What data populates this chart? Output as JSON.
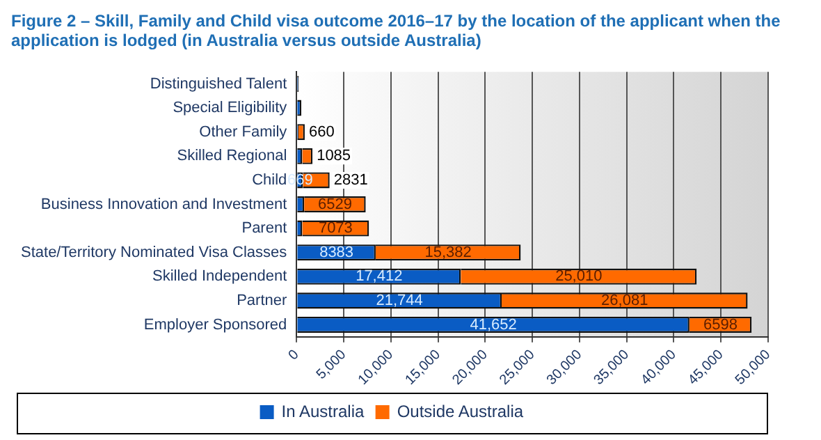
{
  "chart_data": {
    "type": "bar",
    "orientation": "horizontal",
    "stacked": true,
    "title": "Figure 2 – Skill, Family and Child visa outcome 2016–17 by the location of the applicant when the application is lodged (in Australia versus outside Australia)",
    "categories": [
      "Distinguished Talent",
      "Special Eligibility",
      "Other Family",
      "Skilled Regional",
      "Child",
      "Business Innovation and Investment",
      "Parent",
      "State/Territory Nominated Visa Classes",
      "Skilled Independent",
      "Partner",
      "Employer Sponsored"
    ],
    "series": [
      {
        "name": "In Australia",
        "color": "#0a5cc4",
        "values": [
          200,
          500,
          200,
          600,
          669,
          800,
          600,
          8383,
          17412,
          21744,
          41652
        ],
        "value_labels": [
          null,
          null,
          null,
          null,
          "669",
          null,
          null,
          "8383",
          "17,412",
          "21,744",
          "41,652"
        ]
      },
      {
        "name": "Outside Australia",
        "color": "#ff6a00",
        "values": [
          null,
          null,
          660,
          1085,
          2831,
          6529,
          7073,
          15382,
          25010,
          26081,
          6598
        ],
        "value_labels": [
          null,
          null,
          "660",
          "1085",
          "2831",
          "6529",
          "7073",
          "15,382",
          "25,010",
          "26,081",
          "6598"
        ]
      }
    ],
    "xlim": [
      0,
      50000
    ],
    "xticks": [
      {
        "value": 0,
        "label": "0"
      },
      {
        "value": 5000,
        "label": "5,000"
      },
      {
        "value": 10000,
        "label": "10,000"
      },
      {
        "value": 15000,
        "label": "15,000"
      },
      {
        "value": 20000,
        "label": "20,000"
      },
      {
        "value": 25000,
        "label": "25,000"
      },
      {
        "value": 30000,
        "label": "30,000"
      },
      {
        "value": 35000,
        "label": "35,000"
      },
      {
        "value": 40000,
        "label": "40,000"
      },
      {
        "value": 45000,
        "label": "45,000"
      },
      {
        "value": 50000,
        "label": "50,000"
      }
    ],
    "grid": "x",
    "legend": "bottom"
  }
}
